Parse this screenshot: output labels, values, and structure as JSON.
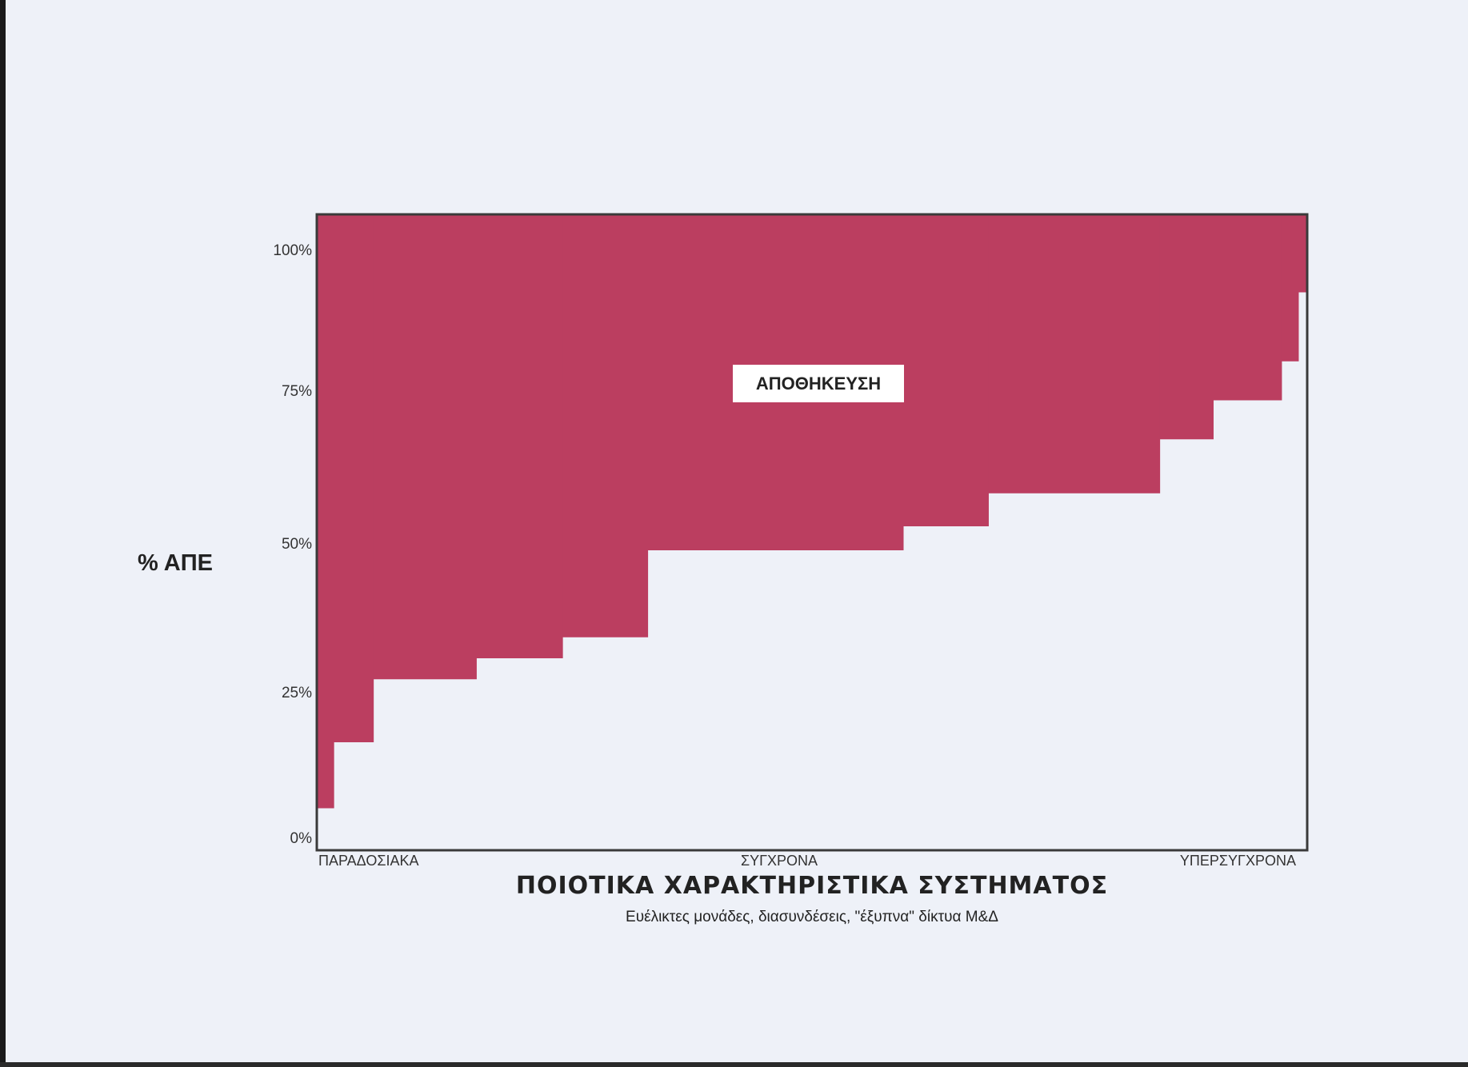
{
  "chart_data": {
    "type": "area",
    "step": true,
    "ylim": [
      0,
      1.06
    ],
    "yticks": [
      {
        "value": 1.0,
        "label": "100%"
      },
      {
        "value": 0.75,
        "label": "75%"
      },
      {
        "value": 0.5,
        "label": "50%"
      },
      {
        "value": 0.25,
        "label": "25%"
      },
      {
        "value": 0.0,
        "label": "0%"
      }
    ],
    "x_category_labels": [
      "ΠΑΡΑΔΟΣΙΑΚΑ",
      "ΣΥΓΧΡΟΝΑ",
      "ΥΠΕΡΣΥΓΧΡΟΝΑ"
    ],
    "ylabel": "% ΑΠΕ",
    "xlabel": "ΠΟΙΟΤΙΚΑ ΧΑΡΑΚΤΗΡΙΣΤΙΚΑ ΣΥΣΤΗΜΑΤΟΣ",
    "xlabel_sub": "Ευέλικτες μονάδες, διασυνδέσεις, \"έξυπνα\" δίκτυα Μ&Δ",
    "area_label": "ΑΠΟΘΗΚΕΥΣΗ",
    "steps": [
      {
        "x_start": 0.0,
        "x_end": 0.017,
        "y_lower": 0.07
      },
      {
        "x_start": 0.017,
        "x_end": 0.057,
        "y_lower": 0.18
      },
      {
        "x_start": 0.057,
        "x_end": 0.161,
        "y_lower": 0.285
      },
      {
        "x_start": 0.161,
        "x_end": 0.248,
        "y_lower": 0.32
      },
      {
        "x_start": 0.248,
        "x_end": 0.334,
        "y_lower": 0.355
      },
      {
        "x_start": 0.334,
        "x_end": 0.592,
        "y_lower": 0.5
      },
      {
        "x_start": 0.592,
        "x_end": 0.678,
        "y_lower": 0.54
      },
      {
        "x_start": 0.678,
        "x_end": 0.851,
        "y_lower": 0.595
      },
      {
        "x_start": 0.851,
        "x_end": 0.905,
        "y_lower": 0.685
      },
      {
        "x_start": 0.905,
        "x_end": 0.974,
        "y_lower": 0.75
      },
      {
        "x_start": 0.974,
        "x_end": 0.991,
        "y_lower": 0.815
      },
      {
        "x_start": 0.991,
        "x_end": 1.0,
        "y_lower": 0.93
      }
    ],
    "y_upper": 1.06,
    "colors": {
      "area": "#bb3e60",
      "frame": "#3a3a3a",
      "background": "#eef1f8"
    }
  }
}
